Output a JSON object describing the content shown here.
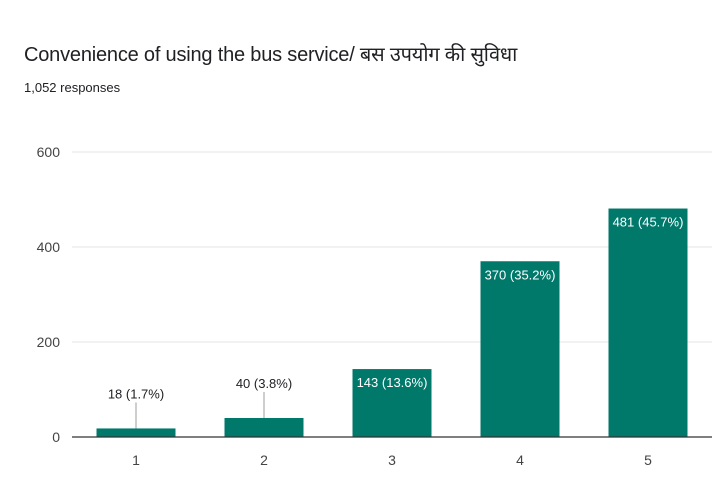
{
  "title": "Convenience of using the bus service/ बस उपयोग की सुविधा",
  "subtitle": "1,052 responses",
  "chart_data": {
    "type": "bar",
    "categories": [
      "1",
      "2",
      "3",
      "4",
      "5"
    ],
    "values": [
      18,
      40,
      143,
      370,
      481
    ],
    "data_labels": [
      "18 (1.7%)",
      "40 (3.8%)",
      "143 (13.6%)",
      "370 (35.2%)",
      "481 (45.7%)"
    ],
    "y_ticks": [
      "0",
      "200",
      "400",
      "600"
    ],
    "ylim": [
      0,
      600
    ],
    "bar_color": "#00796b",
    "grid": true
  }
}
